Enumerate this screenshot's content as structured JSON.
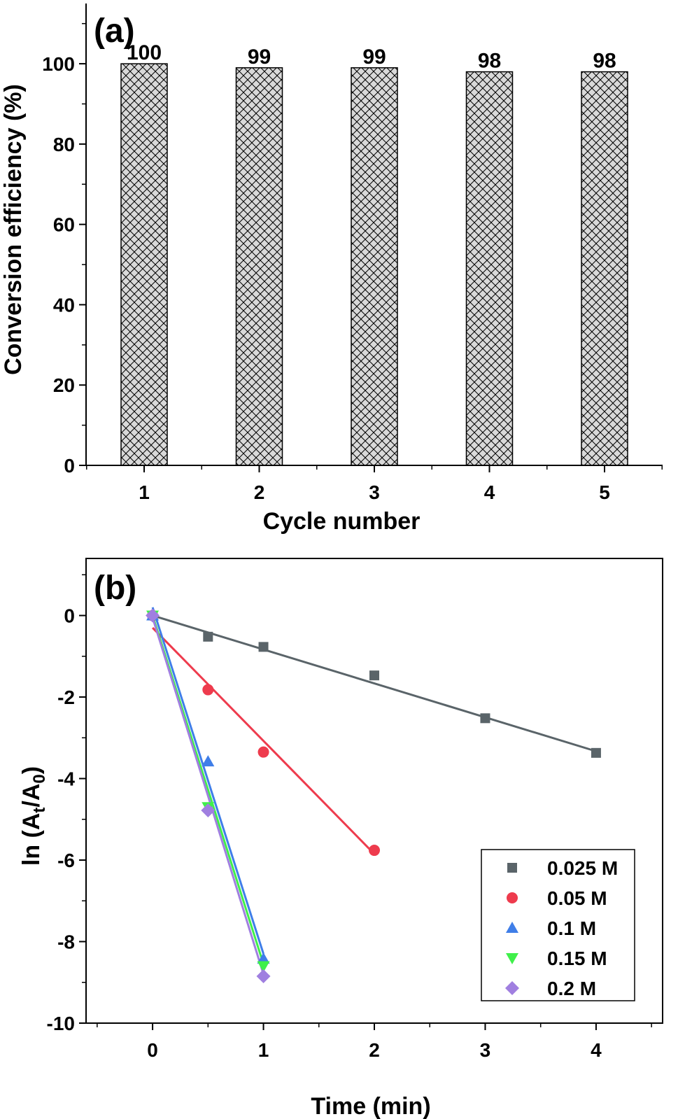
{
  "chart_data": [
    {
      "type": "bar",
      "panel_label": "(a)",
      "xlabel": "Cycle number",
      "ylabel": "Conversion efficiency (%)",
      "categories": [
        "1",
        "2",
        "3",
        "4",
        "5"
      ],
      "values": [
        100,
        99,
        99,
        98,
        98
      ],
      "value_labels": [
        "100",
        "99",
        "99",
        "98",
        "98"
      ],
      "ylim": [
        0,
        115
      ],
      "yticks": [
        0,
        20,
        40,
        60,
        80,
        100
      ],
      "ytick_labels": [
        "0",
        "20",
        "40",
        "60",
        "80",
        "100"
      ],
      "bar_fill": "#d9d9d9",
      "bar_pattern": "crosshatch",
      "grid": false
    },
    {
      "type": "scatter",
      "panel_label": "(b)",
      "xlabel": "Time (min)",
      "ylabel_parts": [
        "ln (A",
        "t",
        "/A",
        "0",
        ")"
      ],
      "xlim": [
        -0.6,
        4.6
      ],
      "ylim": [
        -10,
        1.4
      ],
      "xticks": [
        0,
        1,
        2,
        3,
        4
      ],
      "xtick_labels": [
        "0",
        "1",
        "2",
        "3",
        "4"
      ],
      "yticks": [
        -10,
        -8,
        -6,
        -4,
        -2,
        0
      ],
      "ytick_labels": [
        "-10",
        "-8",
        "-6",
        "-4",
        "-2",
        "0"
      ],
      "legend_position": "bottom-right",
      "grid": false,
      "series": [
        {
          "name": "0.025 M",
          "marker": "square",
          "color": "#5a6469",
          "x": [
            0,
            0.5,
            1,
            2,
            3,
            4
          ],
          "y": [
            0,
            -0.52,
            -0.77,
            -1.47,
            -2.52,
            -3.37
          ],
          "fit": [
            [
              0,
              0
            ],
            [
              4,
              -3.33
            ]
          ]
        },
        {
          "name": "0.05 M",
          "marker": "circle",
          "color": "#ee3b4d",
          "x": [
            0,
            0.5,
            1,
            2
          ],
          "y": [
            0,
            -1.82,
            -3.35,
            -5.76
          ],
          "fit": [
            [
              0,
              -0.3
            ],
            [
              2,
              -5.85
            ]
          ]
        },
        {
          "name": "0.1 M",
          "marker": "triangle-up",
          "color": "#3f7ee8",
          "x": [
            0,
            0.5,
            1
          ],
          "y": [
            0,
            -3.58,
            -8.42
          ],
          "fit": [
            [
              0,
              0.2
            ],
            [
              1,
              -8.3
            ]
          ]
        },
        {
          "name": "0.15 M",
          "marker": "triangle-down",
          "color": "#3ff04a",
          "x": [
            0,
            0.5,
            1
          ],
          "y": [
            0,
            -4.7,
            -8.6
          ],
          "fit": [
            [
              0,
              0.0
            ],
            [
              1,
              -8.55
            ]
          ]
        },
        {
          "name": "0.2 M",
          "marker": "diamond",
          "color": "#a07fe0",
          "x": [
            0,
            0.5,
            1
          ],
          "y": [
            0,
            -4.78,
            -8.85
          ],
          "fit": [
            [
              0,
              -0.05
            ],
            [
              1,
              -8.8
            ]
          ]
        }
      ]
    }
  ]
}
